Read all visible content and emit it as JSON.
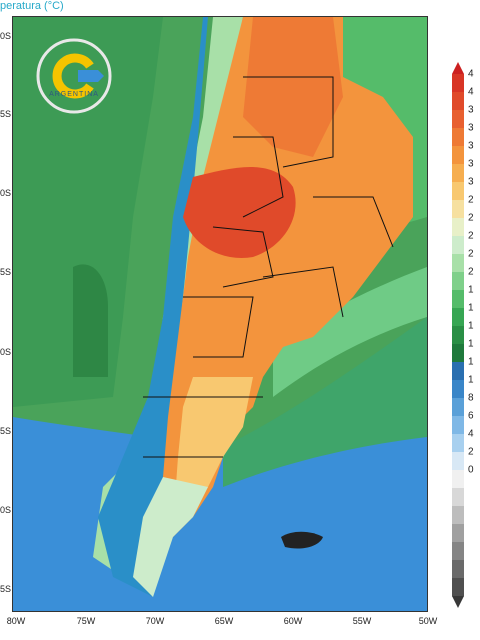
{
  "title": "peratura (°C)",
  "lat_labels": [
    "0S",
    "5S",
    "0S",
    "5S",
    "0S",
    "5S",
    "0S",
    "5S"
  ],
  "lon_labels": [
    "80W",
    "75W",
    "70W",
    "65W",
    "60W",
    "55W",
    "50W"
  ],
  "logo": {
    "text": "ARGENTINA",
    "icon": "argentina-weather-service-logo-icon"
  },
  "colorbar": {
    "labels": [
      "4",
      "4",
      "3",
      "3",
      "3",
      "3",
      "3",
      "2",
      "2",
      "2",
      "2",
      "2",
      "1",
      "1",
      "1",
      "1",
      "1",
      "1",
      "8",
      "6",
      "4",
      "2",
      "0",
      "",
      "",
      "",
      "",
      "",
      "",
      "",
      ""
    ],
    "colors": [
      "#cc2020",
      "#d83525",
      "#e04a2a",
      "#e86030",
      "#ee7a35",
      "#f3943d",
      "#f6ae50",
      "#f8c870",
      "#f6e0a0",
      "#e8f0c8",
      "#cdeccb",
      "#a8e0a8",
      "#7fd08a",
      "#55bc6a",
      "#37a653",
      "#2a8f45",
      "#1f7a3c",
      "#2a6fb0",
      "#3a86c8",
      "#5aa0d8",
      "#7fb8e6",
      "#a8d0ef",
      "#d8e8f5",
      "#f0f0f0",
      "#d8d8d8",
      "#bdbdbd",
      "#a0a0a0",
      "#858585",
      "#6a6a6a",
      "#505050",
      "#383838"
    ]
  }
}
